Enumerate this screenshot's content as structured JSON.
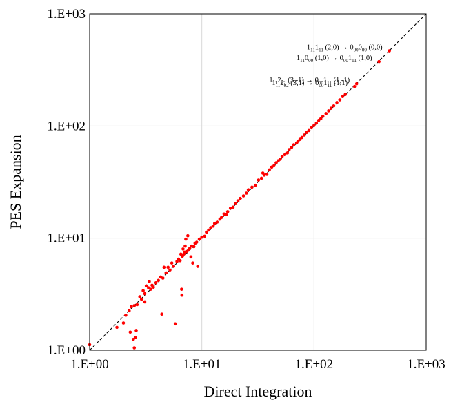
{
  "chart_data": {
    "type": "scatter",
    "title": "",
    "xlabel": "Direct Integration",
    "ylabel": "PES Expansion",
    "xscale": "log",
    "yscale": "log",
    "xlim": [
      1,
      1000
    ],
    "ylim": [
      1,
      1000
    ],
    "xticks": [
      "1.E+00",
      "1.E+01",
      "1.E+02",
      "1.E+03"
    ],
    "yticks": [
      "1.E+00",
      "1.E+01",
      "1.E+02",
      "1.E+03"
    ],
    "grid": true,
    "legend": "none",
    "reference_line": "y = x (dashed)",
    "point_color": "#ff0000",
    "annotations": [
      {
        "text": "1₁₁1₁₁ (2,0) → 0₀₀0₀₀ (0,0)",
        "x": 470,
        "y": 468
      },
      {
        "text": "1₁₁0₀₀ (1,0) → 0₀₀1₁₁ (1,0)",
        "x": 380,
        "y": 375
      },
      {
        "text": "1₁₁2₀₂ (3,-1) → 0₀₀1₁₁ (1,-1)",
        "x": 240,
        "y": 238
      },
      {
        "text": "1₁₁2₀₂ (3,1) → 0₀₀1₁₁ (1,1)",
        "x": 230,
        "y": 225
      }
    ],
    "points": [
      [
        1.0,
        1.12
      ],
      [
        1.75,
        1.6
      ],
      [
        2.0,
        1.75
      ],
      [
        2.1,
        2.05
      ],
      [
        2.25,
        2.25
      ],
      [
        2.35,
        2.45
      ],
      [
        2.5,
        2.5
      ],
      [
        2.3,
        1.45
      ],
      [
        2.45,
        1.25
      ],
      [
        2.5,
        1.05
      ],
      [
        2.55,
        1.3
      ],
      [
        2.6,
        1.5
      ],
      [
        2.65,
        2.55
      ],
      [
        2.8,
        3.0
      ],
      [
        2.9,
        2.85
      ],
      [
        3.0,
        3.4
      ],
      [
        3.1,
        3.2
      ],
      [
        3.2,
        3.75
      ],
      [
        3.35,
        3.6
      ],
      [
        3.1,
        2.7
      ],
      [
        3.5,
        3.5
      ],
      [
        3.6,
        3.8
      ],
      [
        3.7,
        3.65
      ],
      [
        3.4,
        4.1
      ],
      [
        3.9,
        4.0
      ],
      [
        4.1,
        4.2
      ],
      [
        4.3,
        4.5
      ],
      [
        4.5,
        4.4
      ],
      [
        4.6,
        5.5
      ],
      [
        4.4,
        2.1
      ],
      [
        4.8,
        4.9
      ],
      [
        5.0,
        5.5
      ],
      [
        5.2,
        5.2
      ],
      [
        5.4,
        6.0
      ],
      [
        5.6,
        5.6
      ],
      [
        5.8,
        1.72
      ],
      [
        6.0,
        6.2
      ],
      [
        6.2,
        6.5
      ],
      [
        6.4,
        6.3
      ],
      [
        6.5,
        7.2
      ],
      [
        6.6,
        3.5
      ],
      [
        6.65,
        3.1
      ],
      [
        6.7,
        6.9
      ],
      [
        6.8,
        8.0
      ],
      [
        6.9,
        7.2
      ],
      [
        7.0,
        7.5
      ],
      [
        7.1,
        8.5
      ],
      [
        7.2,
        9.8
      ],
      [
        7.3,
        7.6
      ],
      [
        7.5,
        10.5
      ],
      [
        7.6,
        7.8
      ],
      [
        7.8,
        8.1
      ],
      [
        8.0,
        6.8
      ],
      [
        8.1,
        8.5
      ],
      [
        8.3,
        6.0
      ],
      [
        8.5,
        8.4
      ],
      [
        8.7,
        9.0
      ],
      [
        9.0,
        9.2
      ],
      [
        9.2,
        5.6
      ],
      [
        9.5,
        9.8
      ],
      [
        10.0,
        10.2
      ],
      [
        10.6,
        10.4
      ],
      [
        11.0,
        11.3
      ],
      [
        11.5,
        11.8
      ],
      [
        12.0,
        12.4
      ],
      [
        12.6,
        12.8
      ],
      [
        13.0,
        13.5
      ],
      [
        13.7,
        13.9
      ],
      [
        14.5,
        14.8
      ],
      [
        15.0,
        15.3
      ],
      [
        15.8,
        16.4
      ],
      [
        16.5,
        16.2
      ],
      [
        17.0,
        17.2
      ],
      [
        18.0,
        18.5
      ],
      [
        19.0,
        18.9
      ],
      [
        20.0,
        20.3
      ],
      [
        21.0,
        21.5
      ],
      [
        22.0,
        22.6
      ],
      [
        23.5,
        23.8
      ],
      [
        25.0,
        25.2
      ],
      [
        26.0,
        27.0
      ],
      [
        28.0,
        28.5
      ],
      [
        30.0,
        29.6
      ],
      [
        32.0,
        33.0
      ],
      [
        34.0,
        34.2
      ],
      [
        35.0,
        38.0
      ],
      [
        36.0,
        36.5
      ],
      [
        38.0,
        37.0
      ],
      [
        40.0,
        40.6
      ],
      [
        42.0,
        43.0
      ],
      [
        44.0,
        44.2
      ],
      [
        46.0,
        47.0
      ],
      [
        48.0,
        49.0
      ],
      [
        50.0,
        50.5
      ],
      [
        52.0,
        53.5
      ],
      [
        55.0,
        55.5
      ],
      [
        58.0,
        57.5
      ],
      [
        60.0,
        61.5
      ],
      [
        63.0,
        64.0
      ],
      [
        66.0,
        68.0
      ],
      [
        70.0,
        70.5
      ],
      [
        72.0,
        73.0
      ],
      [
        75.0,
        76.0
      ],
      [
        78.0,
        79.0
      ],
      [
        82.0,
        83.0
      ],
      [
        86.0,
        87.5
      ],
      [
        90.0,
        91.0
      ],
      [
        95.0,
        96.5
      ],
      [
        100.0,
        101.0
      ],
      [
        105.0,
        106.0
      ],
      [
        110.0,
        112.0
      ],
      [
        115.0,
        116.0
      ],
      [
        120.0,
        122.0
      ],
      [
        128.0,
        129.0
      ],
      [
        135.0,
        136.5
      ],
      [
        142.0,
        144.0
      ],
      [
        150.0,
        151.0
      ],
      [
        160.0,
        162.0
      ],
      [
        170.0,
        171.0
      ],
      [
        180.0,
        183.0
      ],
      [
        190.0,
        191.0
      ],
      [
        230.0,
        225.0
      ],
      [
        240.0,
        238.0
      ],
      [
        380.0,
        375.0
      ],
      [
        470.0,
        468.0
      ]
    ]
  }
}
